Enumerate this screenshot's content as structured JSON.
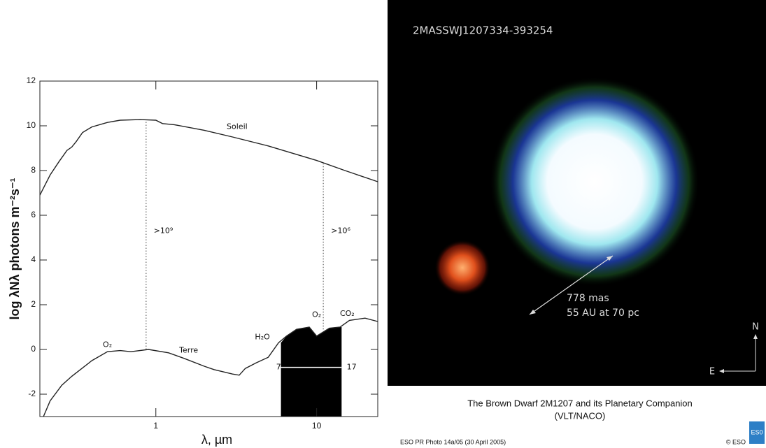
{
  "chart_data": {
    "type": "line",
    "x_label": "λ, µm",
    "y_label": "log λNλ photons m⁻²s⁻¹",
    "xlim": [
      0.19,
      24
    ],
    "ylim": [
      -3,
      12
    ],
    "x_log": true,
    "xticks": [
      1,
      10
    ],
    "yticks": [
      -2,
      0,
      2,
      4,
      6,
      8,
      10,
      12
    ],
    "series": [
      {
        "name": "Soleil",
        "color": "#222",
        "x": [
          0.19,
          0.22,
          0.25,
          0.28,
          0.3,
          0.32,
          0.35,
          0.4,
          0.5,
          0.6,
          0.8,
          1.0,
          1.1,
          1.3,
          2,
          3,
          5,
          10,
          15,
          24
        ],
        "values": [
          6.9,
          7.8,
          8.4,
          8.9,
          9.05,
          9.3,
          9.7,
          9.95,
          10.15,
          10.25,
          10.28,
          10.25,
          10.1,
          10.05,
          9.8,
          9.5,
          9.1,
          8.45,
          8.0,
          7.5
        ]
      },
      {
        "name": "Terre",
        "color": "#222",
        "x": [
          0.2,
          0.22,
          0.26,
          0.3,
          0.4,
          0.5,
          0.6,
          0.7,
          0.9,
          1.2,
          1.5,
          2,
          2.3,
          3,
          3.3,
          3.6,
          4.2,
          5,
          5.8,
          6.5,
          7.5,
          9,
          10,
          12,
          14,
          16,
          20,
          24
        ],
        "values": [
          -3,
          -2.3,
          -1.6,
          -1.2,
          -0.5,
          -0.1,
          -0.05,
          -0.1,
          0,
          -0.15,
          -0.4,
          -0.75,
          -0.9,
          -1.1,
          -1.15,
          -0.85,
          -0.6,
          -0.35,
          0.3,
          0.6,
          0.9,
          1.0,
          0.6,
          0.95,
          1.0,
          1.3,
          1.4,
          1.25
        ]
      }
    ],
    "highlight": {
      "xlim": [
        6,
        14.3
      ],
      "color": "#000"
    },
    "annotations": [
      "O₂",
      "H₂O",
      "O₂",
      "CO₂",
      ">10⁹",
      ">10⁶",
      "7",
      "17"
    ]
  },
  "photo": {
    "label": "2MASSWJ1207334-393254",
    "scale": [
      "778 mas",
      "55 AU at 70 pc"
    ],
    "compass": {
      "north": "N",
      "east": "E"
    },
    "caption": [
      "The Brown Dwarf 2M1207 and its Planetary Companion",
      "(VLT/NACO)"
    ],
    "credit": "ESO PR Photo 14a/05 (30 April 2005)",
    "copyright": "© ESO"
  }
}
